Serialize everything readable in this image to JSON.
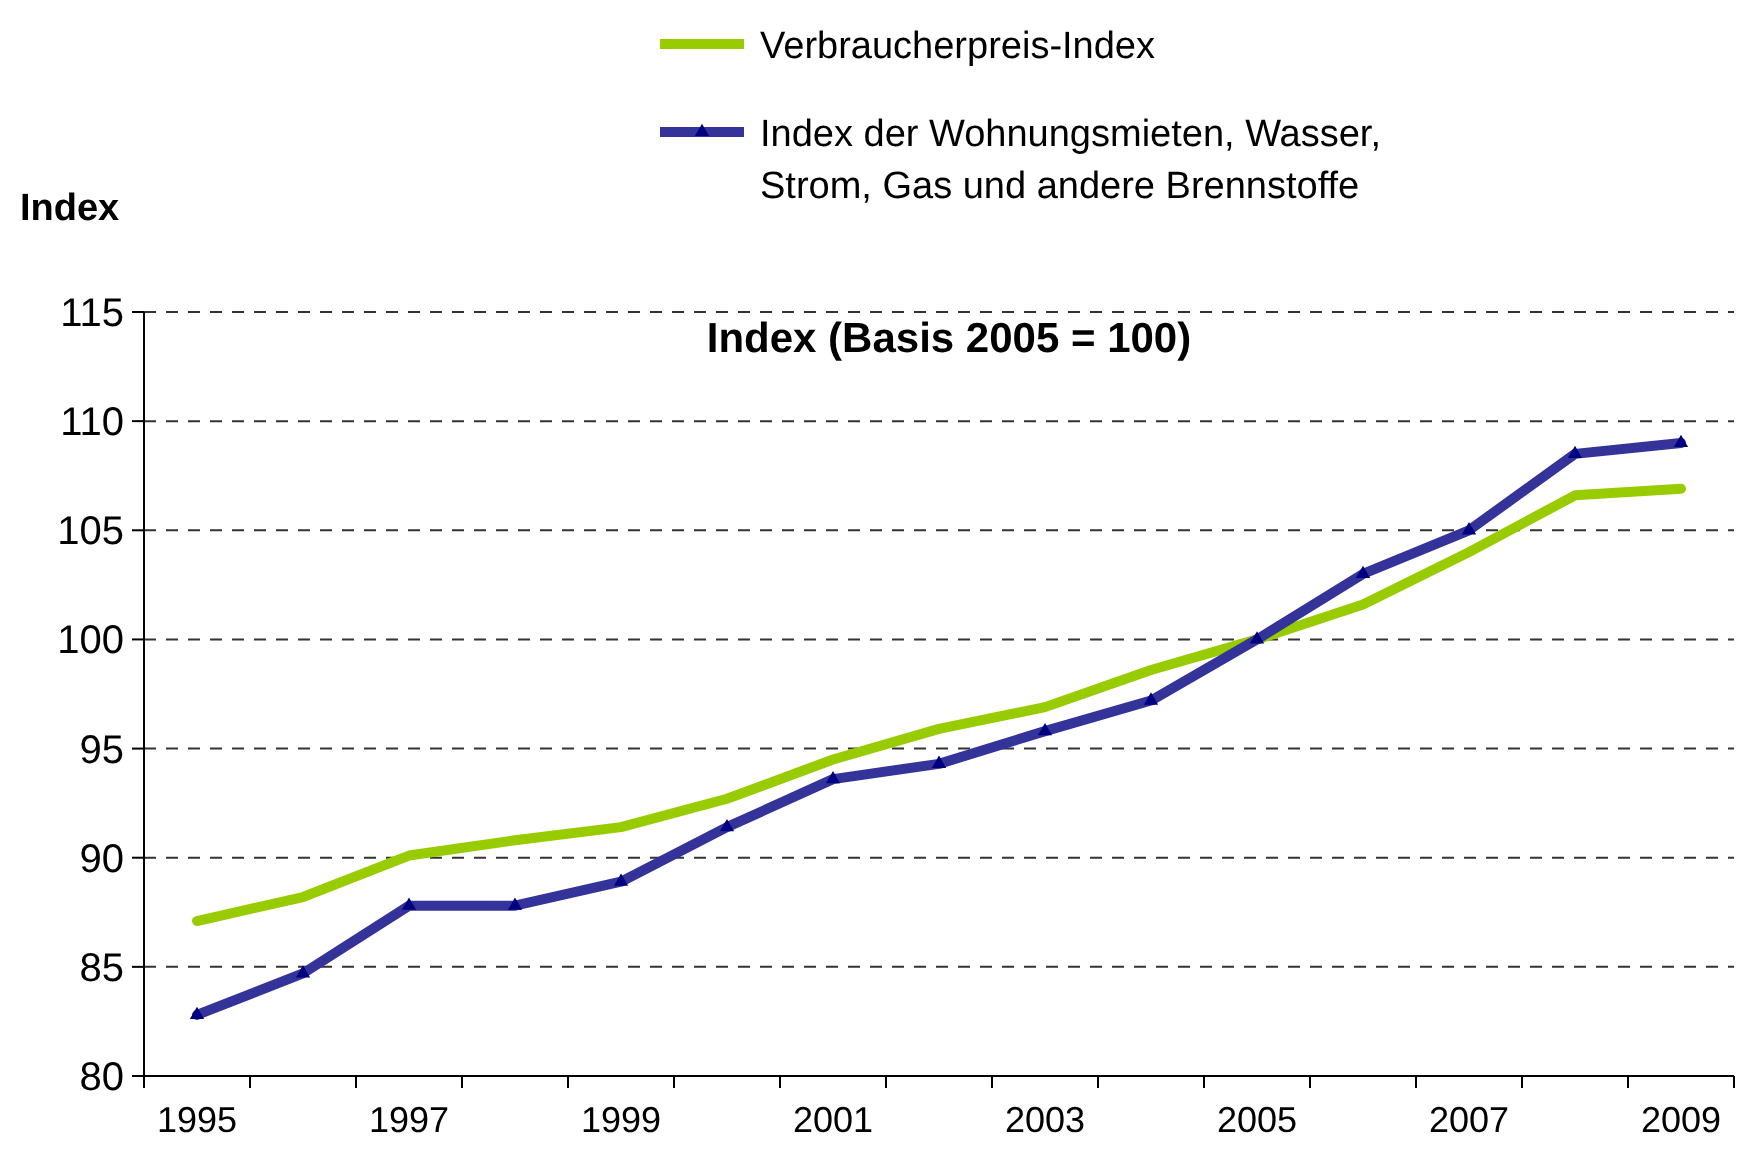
{
  "chart_data": {
    "type": "line",
    "title": "Index (Basis 2005 = 100)",
    "ylabel": "Index",
    "categories": [
      "1995",
      null,
      "1997",
      null,
      "1999",
      null,
      "2001",
      null,
      "2003",
      null,
      "2005",
      null,
      "2007",
      null,
      "2009"
    ],
    "series": [
      {
        "name": "Verbraucherpreis-Index",
        "color": "#99cc00",
        "marker": "none",
        "values": [
          87.1,
          88.2,
          90.1,
          90.8,
          91.4,
          92.7,
          94.5,
          95.9,
          96.9,
          98.6,
          100,
          101.6,
          104.0,
          106.6,
          106.9
        ]
      },
      {
        "name": "Index der Wohnungsmieten, Wasser, Strom, Gas und andere Brennstoffe",
        "color": "#333399",
        "marker": "triangle",
        "values": [
          82.8,
          84.7,
          87.8,
          87.8,
          88.9,
          91.4,
          93.6,
          94.3,
          95.8,
          97.2,
          100,
          103.0,
          105.0,
          108.5,
          109.0
        ]
      }
    ],
    "ylim": [
      80,
      115
    ],
    "yticks": [
      80,
      85,
      90,
      95,
      100,
      105,
      110,
      115
    ],
    "grid": "y",
    "legend": "top right",
    "line_style": "solid"
  }
}
